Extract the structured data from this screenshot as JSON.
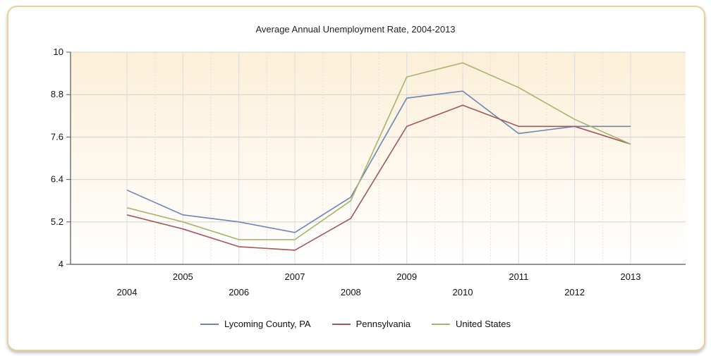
{
  "chart_data": {
    "type": "line",
    "title": "Average Annual Unemployment Rate, 2004-2013",
    "xlabel": "",
    "ylabel": "",
    "categories": [
      "2004",
      "2005",
      "2006",
      "2007",
      "2008",
      "2009",
      "2010",
      "2011",
      "2012",
      "2013"
    ],
    "ylim": [
      4,
      10
    ],
    "yticks": [
      "4",
      "5.2",
      "6.4",
      "7.6",
      "8.8",
      "10"
    ],
    "grid": true,
    "legend_position": "bottom",
    "series": [
      {
        "name": "Lycoming County, PA",
        "color": "#6b86b3",
        "values": [
          6.1,
          5.4,
          5.2,
          4.9,
          5.9,
          8.7,
          8.9,
          7.7,
          7.9,
          7.9
        ]
      },
      {
        "name": "Pennsylvania",
        "color": "#a0575e",
        "values": [
          5.4,
          5.0,
          4.5,
          4.4,
          5.3,
          7.9,
          8.5,
          7.9,
          7.9,
          7.4
        ]
      },
      {
        "name": "United States",
        "color": "#a6b46a",
        "values": [
          5.6,
          5.2,
          4.7,
          4.7,
          5.8,
          9.3,
          9.7,
          9.0,
          8.1,
          7.4
        ]
      }
    ]
  }
}
